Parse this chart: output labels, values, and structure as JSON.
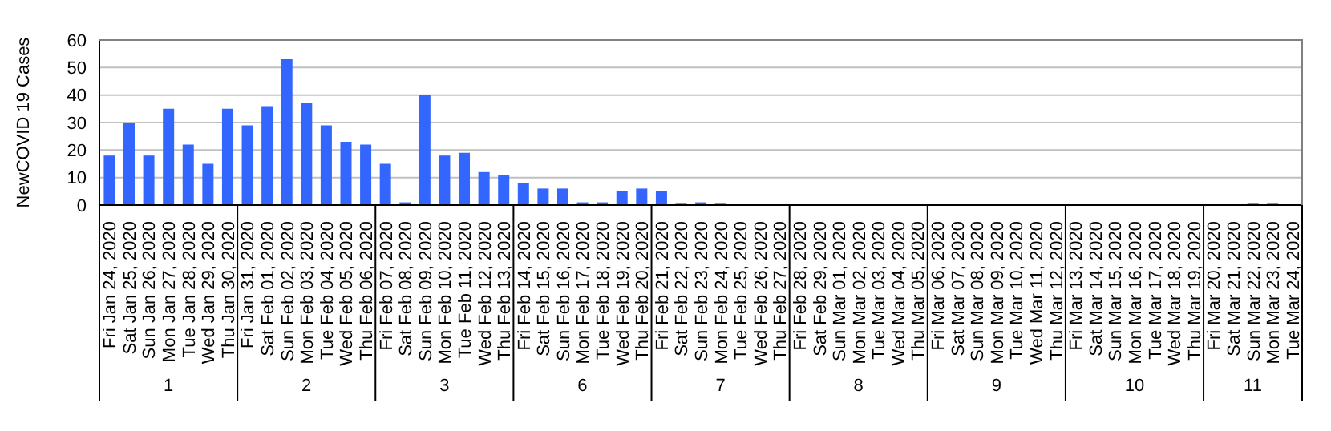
{
  "chart_data": {
    "type": "bar",
    "ylabel": "NewCOVID 19 Cases",
    "categories": [
      "Fri Jan 24, 2020",
      "Sat Jan 25, 2020",
      "Sun Jan 26, 2020",
      "Mon Jan 27, 2020",
      "Tue Jan 28, 2020",
      "Wed Jan 29, 2020",
      "Thu Jan 30, 2020",
      "Fri Jan 31, 2020",
      "Sat Feb 01, 2020",
      "Sun Feb 02, 2020",
      "Mon Feb 03, 2020",
      "Tue Feb 04, 2020",
      "Wed Feb 05, 2020",
      "Thu Feb 06, 2020",
      "Fri Feb 07, 2020",
      "Sat Feb 08, 2020",
      "Sun Feb 09, 2020",
      "Mon Feb 10, 2020",
      "Tue Feb 11, 2020",
      "Wed Feb 12, 2020",
      "Thu Feb 13, 2020",
      "Fri Feb 14, 2020",
      "Sat Feb 15, 2020",
      "Sun Feb 16, 2020",
      "Mon Feb 17, 2020",
      "Tue Feb 18, 2020",
      "Wed Feb 19, 2020",
      "Thu Feb 20, 2020",
      "Fri Feb 21, 2020",
      "Sat Feb 22, 2020",
      "Sun Feb 23, 2020",
      "Mon Feb 24, 2020",
      "Tue Feb 25, 2020",
      "Wed Feb 26, 2020",
      "Thu Feb 27, 2020",
      "Fri Feb 28, 2020",
      "Sat Feb 29, 2020",
      "Sun Mar 01, 2020",
      "Mon Mar 02, 2020",
      "Tue Mar 03, 2020",
      "Wed Mar 04, 2020",
      "Thu Mar 05, 2020",
      "Fri Mar 06, 2020",
      "Sat Mar 07, 2020",
      "Sun Mar 08, 2020",
      "Mon Mar 09, 2020",
      "Tue Mar 10, 2020",
      "Wed Mar 11, 2020",
      "Thu Mar 12, 2020",
      "Fri Mar 13, 2020",
      "Sat Mar 14, 2020",
      "Sun Mar 15, 2020",
      "Mon Mar 16, 2020",
      "Tue Mar 17, 2020",
      "Wed Mar 18, 2020",
      "Thu Mar 19, 2020",
      "Fri Mar 20, 2020",
      "Sat Mar 21, 2020",
      "Sun Mar 22, 2020",
      "Mon Mar 23, 2020",
      "Tue Mar 24, 2020"
    ],
    "values": [
      18,
      30,
      18,
      35,
      22,
      15,
      35,
      29,
      36,
      53,
      37,
      29,
      23,
      22,
      15,
      1,
      40,
      18,
      19,
      12,
      11,
      8,
      6,
      6,
      1,
      1,
      5,
      6,
      5,
      0.5,
      1,
      0.5,
      0,
      0,
      0,
      0,
      0,
      0,
      0,
      0,
      0,
      0,
      0,
      0,
      0,
      0,
      0,
      0,
      0,
      0,
      0,
      0,
      0,
      0,
      0,
      0,
      0,
      0,
      0.5,
      0.5,
      0
    ],
    "color": "#3366ff",
    "ylim": [
      0,
      60
    ],
    "yticks": [
      0,
      10,
      20,
      30,
      40,
      50,
      60
    ],
    "grid": "y",
    "annotations": [
      "1",
      "2",
      "3",
      "6",
      "7",
      "8",
      "9",
      "10",
      "11"
    ]
  }
}
